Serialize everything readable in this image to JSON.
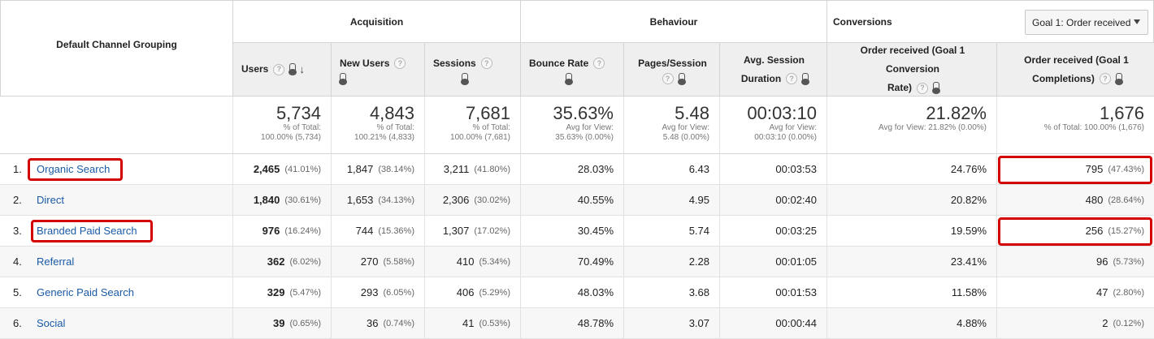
{
  "header": {
    "dimension": "Default Channel Grouping",
    "groups": {
      "acquisition": "Acquisition",
      "behaviour": "Behaviour",
      "conversions": "Conversions"
    },
    "goal_select": "Goal 1: Order received",
    "columns": {
      "users": "Users",
      "new_users": "New Users",
      "sessions": "Sessions",
      "bounce_rate": "Bounce Rate",
      "pages_session": "Pages/Session",
      "avg_dur_1": "Avg. Session",
      "avg_dur_2": "Duration",
      "conv_rate_1": "Order received (Goal 1 Conversion",
      "conv_rate_2": "Rate)",
      "completions_1": "Order received (Goal 1",
      "completions_2": "Completions)"
    },
    "help_glyph": "?"
  },
  "totals": {
    "users": {
      "big": "5,734",
      "s1": "% of Total:",
      "s2": "100.00% (5,734)"
    },
    "new_users": {
      "big": "4,843",
      "s1": "% of Total:",
      "s2": "100.21% (4,833)"
    },
    "sessions": {
      "big": "7,681",
      "s1": "% of Total:",
      "s2": "100.00% (7,681)"
    },
    "bounce_rate": {
      "big": "35.63%",
      "s1": "Avg for View:",
      "s2": "35.63% (0.00%)"
    },
    "pages_session": {
      "big": "5.48",
      "s1": "Avg for View:",
      "s2": "5.48 (0.00%)"
    },
    "avg_dur": {
      "big": "00:03:10",
      "s1": "Avg for View:",
      "s2": "00:03:10 (0.00%)"
    },
    "conv_rate": {
      "big": "21.82%",
      "s1": "Avg for View: 21.82% (0.00%)"
    },
    "completions": {
      "big": "1,676",
      "s1": "% of Total: 100.00% (1,676)"
    }
  },
  "rows": [
    {
      "num": "1.",
      "name": "Organic Search",
      "users": "2,465",
      "users_pct": "(41.01%)",
      "new_users": "1,847",
      "new_users_pct": "(38.14%)",
      "sessions": "3,211",
      "sessions_pct": "(41.80%)",
      "bounce": "28.03%",
      "pages": "6.43",
      "dur": "00:03:53",
      "conv": "24.76%",
      "comp": "795",
      "comp_pct": "(47.43%)"
    },
    {
      "num": "2.",
      "name": "Direct",
      "users": "1,840",
      "users_pct": "(30.61%)",
      "new_users": "1,653",
      "new_users_pct": "(34.13%)",
      "sessions": "2,306",
      "sessions_pct": "(30.02%)",
      "bounce": "40.55%",
      "pages": "4.95",
      "dur": "00:02:40",
      "conv": "20.82%",
      "comp": "480",
      "comp_pct": "(28.64%)"
    },
    {
      "num": "3.",
      "name": "Branded Paid Search",
      "users": "976",
      "users_pct": "(16.24%)",
      "new_users": "744",
      "new_users_pct": "(15.36%)",
      "sessions": "1,307",
      "sessions_pct": "(17.02%)",
      "bounce": "30.45%",
      "pages": "5.74",
      "dur": "00:03:25",
      "conv": "19.59%",
      "comp": "256",
      "comp_pct": "(15.27%)"
    },
    {
      "num": "4.",
      "name": "Referral",
      "users": "362",
      "users_pct": "(6.02%)",
      "new_users": "270",
      "new_users_pct": "(5.58%)",
      "sessions": "410",
      "sessions_pct": "(5.34%)",
      "bounce": "70.49%",
      "pages": "2.28",
      "dur": "00:01:05",
      "conv": "23.41%",
      "comp": "96",
      "comp_pct": "(5.73%)"
    },
    {
      "num": "5.",
      "name": "Generic Paid Search",
      "users": "329",
      "users_pct": "(5.47%)",
      "new_users": "293",
      "new_users_pct": "(6.05%)",
      "sessions": "406",
      "sessions_pct": "(5.29%)",
      "bounce": "48.03%",
      "pages": "3.68",
      "dur": "00:01:53",
      "conv": "11.58%",
      "comp": "47",
      "comp_pct": "(2.80%)"
    },
    {
      "num": "6.",
      "name": "Social",
      "users": "39",
      "users_pct": "(0.65%)",
      "new_users": "36",
      "new_users_pct": "(0.74%)",
      "sessions": "41",
      "sessions_pct": "(0.53%)",
      "bounce": "48.78%",
      "pages": "3.07",
      "dur": "00:00:44",
      "conv": "4.88%",
      "comp": "2",
      "comp_pct": "(0.12%)"
    }
  ],
  "highlight_color": "#d40000",
  "link_color": "#1a5aa6"
}
